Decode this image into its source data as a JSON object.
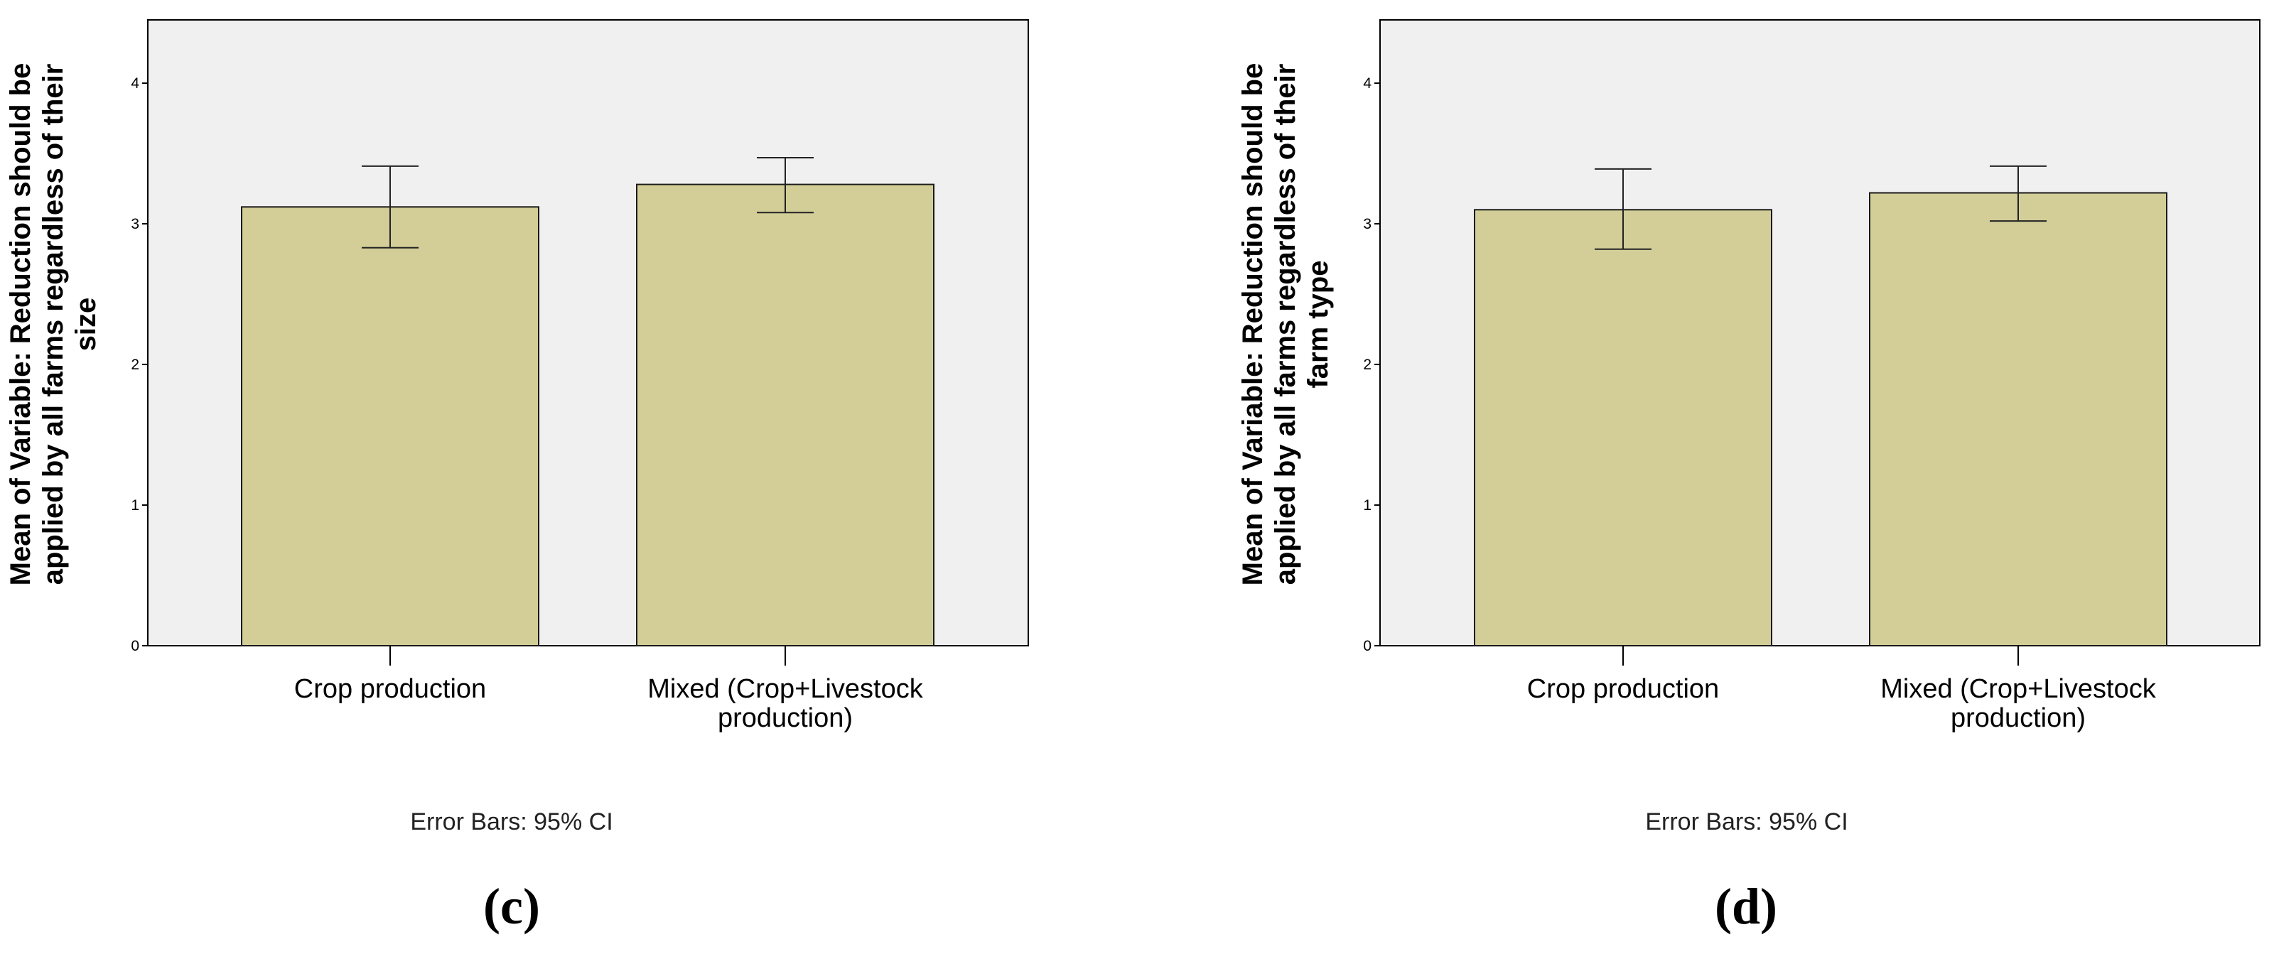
{
  "colors": {
    "plot_background": "#f0f0f0",
    "bar_fill": "#d3ce98",
    "bar_stroke": "#1a1a1a",
    "axis": "#000000"
  },
  "chart_data": [
    {
      "type": "bar",
      "panel": "(c)",
      "categories": [
        "Crop production",
        "Mixed (Crop+Livestock production)"
      ],
      "category_lines": [
        [
          "Crop production"
        ],
        [
          "Mixed (Crop+Livestock",
          "production)"
        ]
      ],
      "values": [
        3.12,
        3.28
      ],
      "ci_low": [
        2.83,
        3.08
      ],
      "ci_high": [
        3.41,
        3.47
      ],
      "ylabel_lines": [
        "Mean of Variable: Reduction should be",
        "applied by all farms regardless of their",
        "size"
      ],
      "ylim": [
        0,
        4.45
      ],
      "yticks": [
        0,
        1,
        2,
        3,
        4
      ],
      "note": "Error Bars: 95% CI",
      "grid": false
    },
    {
      "type": "bar",
      "panel": "(d)",
      "categories": [
        "Crop production",
        "Mixed (Crop+Livestock production)"
      ],
      "category_lines": [
        [
          "Crop production"
        ],
        [
          "Mixed (Crop+Livestock",
          "production)"
        ]
      ],
      "values": [
        3.1,
        3.22
      ],
      "ci_low": [
        2.82,
        3.02
      ],
      "ci_high": [
        3.39,
        3.41
      ],
      "ylabel_lines": [
        "Mean of Variable: Reduction should be",
        "applied by all farms regardless of their",
        "farm type"
      ],
      "ylim": [
        0,
        4.45
      ],
      "yticks": [
        0,
        1,
        2,
        3,
        4
      ],
      "note": "Error Bars: 95% CI",
      "grid": false
    }
  ]
}
